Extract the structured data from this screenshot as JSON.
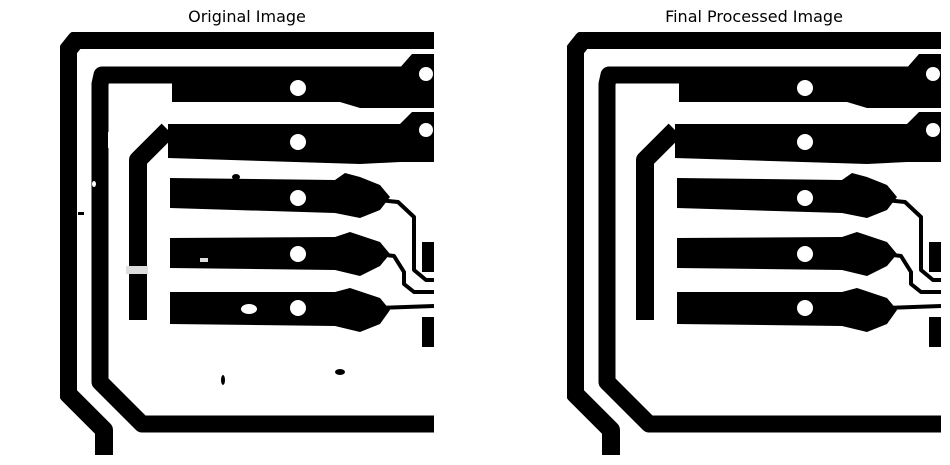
{
  "figure": {
    "panels": [
      {
        "title": "Original Image"
      },
      {
        "title": "Final Processed Image"
      }
    ],
    "colors": {
      "background": "#ffffff",
      "foreground": "#000000"
    },
    "content": "binary pcb trace image"
  }
}
